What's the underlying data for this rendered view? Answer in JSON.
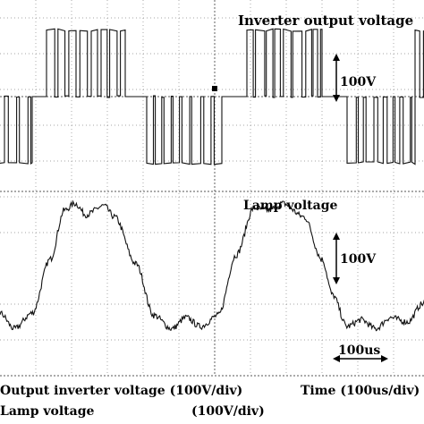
{
  "chart_data": [
    {
      "type": "line",
      "title": "",
      "xlabel": "Time (100us/div)",
      "ylabel": "Output inverter voltage (100V/div)",
      "grid": true,
      "annotations": [
        "Inverter output voltage",
        "100V"
      ],
      "series": [
        {
          "name": "Inverter output voltage",
          "shape": "multilevel PWM",
          "segments": [
            {
              "t_div": [
                0.0,
                0.45
              ],
              "level_div": -1.2
            },
            {
              "t_div": [
                0.45,
                0.65
              ],
              "level_div": 0.0
            },
            {
              "t_div": [
                0.65,
                1.75
              ],
              "level_div": 1.2
            },
            {
              "t_div": [
                1.75,
                2.05
              ],
              "level_div": 0.0
            },
            {
              "t_div": [
                2.05,
                3.1
              ],
              "level_div": -1.2
            },
            {
              "t_div": [
                3.1,
                3.45
              ],
              "level_div": 0.0
            },
            {
              "t_div": [
                3.45,
                4.5
              ],
              "level_div": 1.2
            },
            {
              "t_div": [
                4.5,
                4.85
              ],
              "level_div": 0.0
            },
            {
              "t_div": [
                4.85,
                5.8
              ],
              "level_div": -1.2
            },
            {
              "t_div": [
                5.8,
                6.0
              ],
              "level_div": 1.2
            }
          ]
        }
      ]
    },
    {
      "type": "line",
      "title": "",
      "xlabel": "Time (100us/div)",
      "ylabel": "Lamp voltage (100V/div)",
      "grid": true,
      "annotations": [
        "Lamp voltage",
        "100V",
        "100us"
      ],
      "series": [
        {
          "name": "Lamp voltage",
          "x_div": [
            0.0,
            0.2,
            0.45,
            0.7,
            0.9,
            1.05,
            1.2,
            1.45,
            1.6,
            1.9,
            2.15,
            2.4,
            2.6,
            2.8,
            3.05,
            3.3,
            3.55,
            3.75,
            3.95,
            4.25,
            4.5,
            4.65,
            4.85,
            5.05,
            5.25,
            5.45,
            5.7,
            5.9,
            6.0
          ],
          "y_div": [
            -1.0,
            -1.35,
            -1.0,
            0.2,
            1.3,
            1.45,
            1.2,
            1.4,
            1.15,
            0.1,
            -1.05,
            -1.35,
            -1.1,
            -1.3,
            -1.05,
            0.3,
            1.35,
            1.3,
            1.45,
            1.15,
            0.2,
            -0.6,
            -1.3,
            -1.15,
            -1.35,
            -1.1,
            -1.2,
            -0.8,
            -0.6
          ]
        }
      ]
    }
  ],
  "labels": {
    "upper_title": "Inverter output voltage",
    "upper_scale": "100V",
    "lower_title": "Lamp voltage",
    "lower_scale": "100V",
    "time_scale": "100us",
    "legend_line1_left": "Output inverter voltage (100V/div)",
    "legend_line1_right": "Time (100us/div)",
    "legend_line2_left": "Lamp voltage",
    "legend_line2_mid": "(100V/div)"
  }
}
